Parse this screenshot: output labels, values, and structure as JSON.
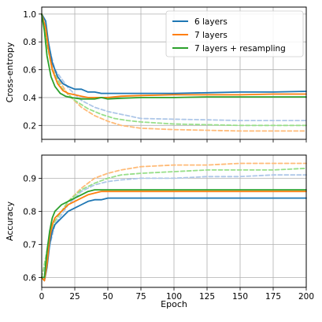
{
  "chart_data": [
    {
      "type": "line",
      "ylabel": "Cross-entropy",
      "xlim": [
        0,
        200
      ],
      "ylim": [
        0.1,
        1.05
      ],
      "yticks": [
        0.2,
        0.4,
        0.6,
        0.8,
        1.0
      ],
      "ytick_labels": [
        "0.2",
        "0.4",
        "0.6",
        "0.8",
        "1.0"
      ],
      "xticks": [
        0,
        25,
        50,
        75,
        100,
        125,
        150,
        175,
        200
      ],
      "grid": true,
      "legend": {
        "placement": "top-right",
        "entries": [
          "6 layers",
          "7 layers",
          "7 layers + resampling"
        ]
      },
      "series": [
        {
          "name": "6 layers",
          "color": "#1f77b4",
          "style": "solid",
          "points": [
            [
              0,
              1.0
            ],
            [
              3,
              0.95
            ],
            [
              5,
              0.8
            ],
            [
              8,
              0.65
            ],
            [
              12,
              0.55
            ],
            [
              16,
              0.5
            ],
            [
              20,
              0.48
            ],
            [
              25,
              0.46
            ],
            [
              30,
              0.46
            ],
            [
              35,
              0.44
            ],
            [
              40,
              0.44
            ],
            [
              45,
              0.43
            ],
            [
              50,
              0.43
            ],
            [
              60,
              0.43
            ],
            [
              75,
              0.43
            ],
            [
              100,
              0.43
            ],
            [
              125,
              0.435
            ],
            [
              150,
              0.44
            ],
            [
              175,
              0.44
            ],
            [
              200,
              0.445
            ]
          ]
        },
        {
          "name": "7 layers",
          "color": "#ff7f0e",
          "style": "solid",
          "points": [
            [
              0,
              1.0
            ],
            [
              3,
              0.9
            ],
            [
              5,
              0.75
            ],
            [
              8,
              0.6
            ],
            [
              12,
              0.5
            ],
            [
              16,
              0.45
            ],
            [
              20,
              0.43
            ],
            [
              25,
              0.42
            ],
            [
              30,
              0.41
            ],
            [
              35,
              0.4
            ],
            [
              40,
              0.4
            ],
            [
              45,
              0.4
            ],
            [
              50,
              0.4
            ],
            [
              60,
              0.41
            ],
            [
              75,
              0.415
            ],
            [
              100,
              0.42
            ],
            [
              125,
              0.42
            ],
            [
              150,
              0.42
            ],
            [
              175,
              0.425
            ],
            [
              200,
              0.425
            ]
          ]
        },
        {
          "name": "7 layers + resampling",
          "color": "#2ca02c",
          "style": "solid",
          "points": [
            [
              0,
              1.0
            ],
            [
              2,
              0.88
            ],
            [
              4,
              0.7
            ],
            [
              7,
              0.55
            ],
            [
              10,
              0.48
            ],
            [
              14,
              0.43
            ],
            [
              18,
              0.41
            ],
            [
              22,
              0.4
            ],
            [
              26,
              0.395
            ],
            [
              30,
              0.39
            ],
            [
              35,
              0.39
            ],
            [
              40,
              0.39
            ],
            [
              45,
              0.4
            ],
            [
              50,
              0.39
            ],
            [
              60,
              0.395
            ],
            [
              75,
              0.4
            ],
            [
              100,
              0.4
            ],
            [
              125,
              0.405
            ],
            [
              150,
              0.405
            ],
            [
              175,
              0.405
            ],
            [
              200,
              0.405
            ]
          ]
        },
        {
          "color": "#aec7e8",
          "style": "dashed",
          "points": [
            [
              0,
              1.0
            ],
            [
              5,
              0.78
            ],
            [
              10,
              0.6
            ],
            [
              20,
              0.47
            ],
            [
              30,
              0.38
            ],
            [
              40,
              0.33
            ],
            [
              50,
              0.3
            ],
            [
              60,
              0.28
            ],
            [
              75,
              0.25
            ],
            [
              100,
              0.245
            ],
            [
              125,
              0.24
            ],
            [
              150,
              0.235
            ],
            [
              175,
              0.235
            ],
            [
              200,
              0.235
            ]
          ]
        },
        {
          "color": "#ffbb78",
          "style": "dashed",
          "points": [
            [
              0,
              1.0
            ],
            [
              5,
              0.75
            ],
            [
              10,
              0.57
            ],
            [
              20,
              0.42
            ],
            [
              30,
              0.33
            ],
            [
              40,
              0.27
            ],
            [
              50,
              0.23
            ],
            [
              60,
              0.2
            ],
            [
              75,
              0.18
            ],
            [
              100,
              0.17
            ],
            [
              125,
              0.165
            ],
            [
              150,
              0.16
            ],
            [
              175,
              0.16
            ],
            [
              200,
              0.16
            ]
          ]
        },
        {
          "color": "#98df8a",
          "style": "dashed",
          "points": [
            [
              0,
              1.0
            ],
            [
              4,
              0.78
            ],
            [
              8,
              0.6
            ],
            [
              15,
              0.47
            ],
            [
              25,
              0.38
            ],
            [
              35,
              0.32
            ],
            [
              45,
              0.28
            ],
            [
              55,
              0.25
            ],
            [
              65,
              0.235
            ],
            [
              75,
              0.225
            ],
            [
              100,
              0.21
            ],
            [
              125,
              0.205
            ],
            [
              150,
              0.2
            ],
            [
              175,
              0.2
            ],
            [
              200,
              0.2
            ]
          ]
        }
      ]
    },
    {
      "type": "line",
      "xlabel": "Epoch",
      "ylabel": "Accuracy",
      "xlim": [
        0,
        200
      ],
      "ylim": [
        0.57,
        0.97
      ],
      "yticks": [
        0.6,
        0.7,
        0.8,
        0.9
      ],
      "ytick_labels": [
        "0.6",
        "0.7",
        "0.8",
        "0.9"
      ],
      "xticks": [
        0,
        25,
        50,
        75,
        100,
        125,
        150,
        175,
        200
      ],
      "xtick_labels": [
        "0",
        "25",
        "50",
        "75",
        "100",
        "125",
        "150",
        "175",
        "200"
      ],
      "grid": true,
      "series": [
        {
          "name": "6 layers",
          "color": "#1f77b4",
          "style": "solid",
          "points": [
            [
              0,
              0.6
            ],
            [
              2,
              0.59
            ],
            [
              4,
              0.63
            ],
            [
              6,
              0.7
            ],
            [
              8,
              0.74
            ],
            [
              10,
              0.76
            ],
            [
              15,
              0.78
            ],
            [
              20,
              0.8
            ],
            [
              25,
              0.81
            ],
            [
              30,
              0.82
            ],
            [
              35,
              0.83
            ],
            [
              40,
              0.835
            ],
            [
              45,
              0.835
            ],
            [
              50,
              0.84
            ],
            [
              60,
              0.84
            ],
            [
              75,
              0.84
            ],
            [
              100,
              0.84
            ],
            [
              125,
              0.84
            ],
            [
              150,
              0.84
            ],
            [
              175,
              0.84
            ],
            [
              200,
              0.84
            ]
          ]
        },
        {
          "name": "7 layers",
          "color": "#ff7f0e",
          "style": "solid",
          "points": [
            [
              0,
              0.6
            ],
            [
              2,
              0.59
            ],
            [
              4,
              0.64
            ],
            [
              6,
              0.72
            ],
            [
              8,
              0.76
            ],
            [
              10,
              0.78
            ],
            [
              15,
              0.8
            ],
            [
              20,
              0.82
            ],
            [
              25,
              0.83
            ],
            [
              30,
              0.84
            ],
            [
              35,
              0.85
            ],
            [
              40,
              0.855
            ],
            [
              45,
              0.86
            ],
            [
              50,
              0.86
            ],
            [
              60,
              0.86
            ],
            [
              75,
              0.86
            ],
            [
              100,
              0.86
            ],
            [
              125,
              0.86
            ],
            [
              150,
              0.86
            ],
            [
              175,
              0.86
            ],
            [
              200,
              0.86
            ]
          ]
        },
        {
          "name": "7 layers + resampling",
          "color": "#2ca02c",
          "style": "solid",
          "points": [
            [
              0,
              0.6
            ],
            [
              2,
              0.6
            ],
            [
              4,
              0.68
            ],
            [
              6,
              0.74
            ],
            [
              8,
              0.78
            ],
            [
              10,
              0.8
            ],
            [
              15,
              0.82
            ],
            [
              20,
              0.83
            ],
            [
              25,
              0.84
            ],
            [
              30,
              0.85
            ],
            [
              35,
              0.86
            ],
            [
              40,
              0.865
            ],
            [
              45,
              0.865
            ],
            [
              50,
              0.865
            ],
            [
              60,
              0.865
            ],
            [
              75,
              0.865
            ],
            [
              100,
              0.865
            ],
            [
              125,
              0.865
            ],
            [
              150,
              0.865
            ],
            [
              175,
              0.865
            ],
            [
              200,
              0.865
            ]
          ]
        },
        {
          "color": "#aec7e8",
          "style": "dashed",
          "points": [
            [
              0,
              0.6
            ],
            [
              5,
              0.68
            ],
            [
              10,
              0.76
            ],
            [
              20,
              0.82
            ],
            [
              30,
              0.86
            ],
            [
              40,
              0.88
            ],
            [
              50,
              0.89
            ],
            [
              60,
              0.895
            ],
            [
              75,
              0.9
            ],
            [
              100,
              0.9
            ],
            [
              125,
              0.905
            ],
            [
              150,
              0.905
            ],
            [
              175,
              0.91
            ],
            [
              200,
              0.91
            ]
          ]
        },
        {
          "color": "#ffbb78",
          "style": "dashed",
          "points": [
            [
              0,
              0.6
            ],
            [
              5,
              0.7
            ],
            [
              10,
              0.77
            ],
            [
              20,
              0.83
            ],
            [
              30,
              0.87
            ],
            [
              40,
              0.9
            ],
            [
              50,
              0.915
            ],
            [
              60,
              0.925
            ],
            [
              75,
              0.935
            ],
            [
              100,
              0.94
            ],
            [
              125,
              0.94
            ],
            [
              150,
              0.945
            ],
            [
              175,
              0.945
            ],
            [
              200,
              0.945
            ]
          ]
        },
        {
          "color": "#98df8a",
          "style": "dashed",
          "points": [
            [
              0,
              0.6
            ],
            [
              5,
              0.7
            ],
            [
              10,
              0.77
            ],
            [
              20,
              0.83
            ],
            [
              30,
              0.865
            ],
            [
              40,
              0.885
            ],
            [
              50,
              0.9
            ],
            [
              60,
              0.91
            ],
            [
              75,
              0.915
            ],
            [
              100,
              0.92
            ],
            [
              125,
              0.925
            ],
            [
              150,
              0.925
            ],
            [
              175,
              0.925
            ],
            [
              200,
              0.93
            ]
          ]
        }
      ]
    }
  ]
}
